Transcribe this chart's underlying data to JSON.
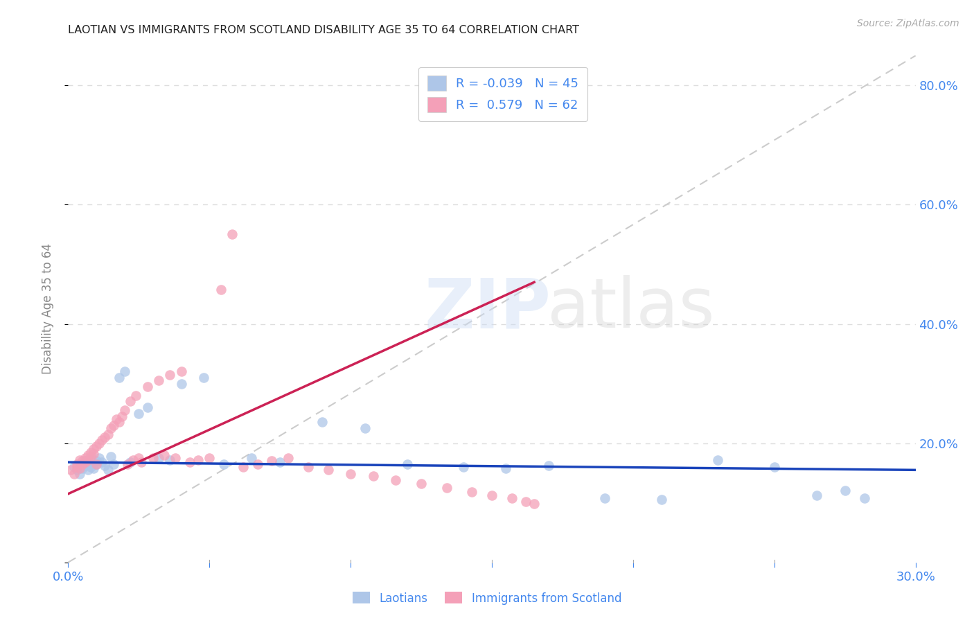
{
  "title": "LAOTIAN VS IMMIGRANTS FROM SCOTLAND DISABILITY AGE 35 TO 64 CORRELATION CHART",
  "source": "Source: ZipAtlas.com",
  "ylabel": "Disability Age 35 to 64",
  "xlim": [
    0.0,
    0.3
  ],
  "ylim": [
    0.0,
    0.85
  ],
  "laotian_R": -0.039,
  "laotian_N": 45,
  "scotland_R": 0.579,
  "scotland_N": 62,
  "laotian_color": "#aec6e8",
  "scotland_color": "#f4a0b8",
  "laotian_line_color": "#1a44bb",
  "scotland_line_color": "#cc2255",
  "diagonal_color": "#cccccc",
  "background_color": "#ffffff",
  "grid_color": "#dddddd",
  "axis_label_color": "#4488ee",
  "title_color": "#222222",
  "laotian_x": [
    0.002,
    0.003,
    0.004,
    0.005,
    0.005,
    0.006,
    0.006,
    0.007,
    0.007,
    0.008,
    0.008,
    0.009,
    0.01,
    0.01,
    0.011,
    0.012,
    0.013,
    0.014,
    0.015,
    0.016,
    0.018,
    0.02,
    0.022,
    0.025,
    0.028,
    0.032,
    0.036,
    0.04,
    0.048,
    0.055,
    0.065,
    0.075,
    0.09,
    0.105,
    0.12,
    0.14,
    0.155,
    0.17,
    0.19,
    0.21,
    0.23,
    0.25,
    0.265,
    0.275,
    0.282
  ],
  "laotian_y": [
    0.16,
    0.155,
    0.148,
    0.165,
    0.158,
    0.17,
    0.162,
    0.155,
    0.168,
    0.16,
    0.172,
    0.158,
    0.165,
    0.17,
    0.175,
    0.168,
    0.162,
    0.155,
    0.178,
    0.165,
    0.31,
    0.32,
    0.168,
    0.25,
    0.26,
    0.175,
    0.172,
    0.3,
    0.31,
    0.165,
    0.175,
    0.168,
    0.235,
    0.225,
    0.165,
    0.16,
    0.158,
    0.162,
    0.108,
    0.105,
    0.172,
    0.16,
    0.112,
    0.12,
    0.108
  ],
  "scotland_x": [
    0.001,
    0.002,
    0.003,
    0.003,
    0.004,
    0.004,
    0.005,
    0.005,
    0.006,
    0.006,
    0.007,
    0.007,
    0.008,
    0.008,
    0.009,
    0.009,
    0.01,
    0.01,
    0.011,
    0.012,
    0.013,
    0.014,
    0.015,
    0.016,
    0.017,
    0.018,
    0.019,
    0.02,
    0.021,
    0.022,
    0.023,
    0.024,
    0.025,
    0.026,
    0.028,
    0.03,
    0.032,
    0.034,
    0.036,
    0.038,
    0.04,
    0.043,
    0.046,
    0.05,
    0.054,
    0.058,
    0.062,
    0.067,
    0.072,
    0.078,
    0.085,
    0.092,
    0.1,
    0.108,
    0.116,
    0.125,
    0.134,
    0.143,
    0.15,
    0.157,
    0.162,
    0.165
  ],
  "scotland_y": [
    0.155,
    0.148,
    0.16,
    0.165,
    0.158,
    0.172,
    0.165,
    0.17,
    0.168,
    0.175,
    0.18,
    0.172,
    0.185,
    0.178,
    0.19,
    0.182,
    0.195,
    0.165,
    0.2,
    0.205,
    0.21,
    0.215,
    0.225,
    0.23,
    0.24,
    0.235,
    0.245,
    0.255,
    0.165,
    0.27,
    0.172,
    0.28,
    0.175,
    0.168,
    0.295,
    0.175,
    0.305,
    0.18,
    0.315,
    0.175,
    0.32,
    0.168,
    0.172,
    0.175,
    0.458,
    0.55,
    0.16,
    0.165,
    0.17,
    0.175,
    0.16,
    0.155,
    0.148,
    0.145,
    0.138,
    0.132,
    0.125,
    0.118,
    0.112,
    0.108,
    0.102,
    0.098
  ],
  "lao_trend_x": [
    0.0,
    0.3
  ],
  "lao_trend_y": [
    0.168,
    0.155
  ],
  "scot_trend_x": [
    0.0,
    0.165
  ],
  "scot_trend_y": [
    0.115,
    0.47
  ]
}
